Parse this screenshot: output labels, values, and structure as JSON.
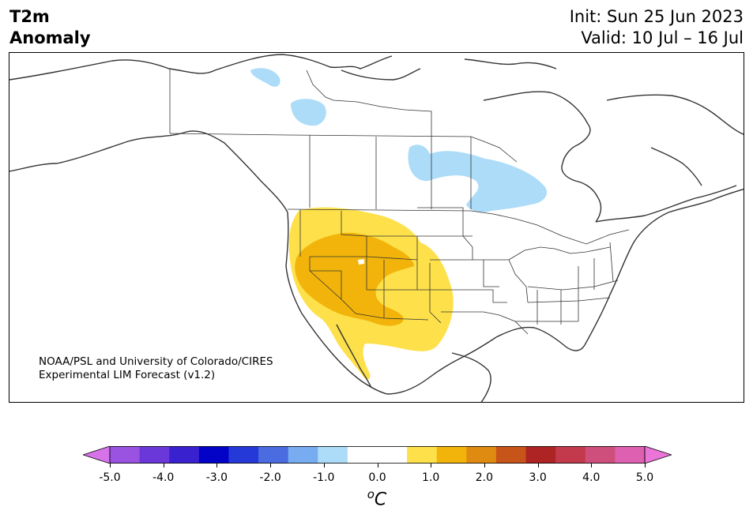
{
  "header": {
    "title_line1": "T2m",
    "title_line2": "Anomaly",
    "init": "Init: Sun 25 Jun 2023",
    "valid": "Valid: 10 Jul – 16 Jul"
  },
  "credit": {
    "line1": "NOAA/PSL and University of Colorado/CIRES",
    "line2": "Experimental LIM Forecast (v1.2)"
  },
  "legend": {
    "unit_base": "C",
    "unit_sup": "o",
    "ticks": [
      "-5.0",
      "-4.0",
      "-3.0",
      "-2.0",
      "-1.0",
      "0.0",
      "1.0",
      "2.0",
      "3.0",
      "4.0",
      "5.0"
    ],
    "colors": [
      "#d673e8",
      "#9a52e0",
      "#6a38d8",
      "#3a21d0",
      "#0303c8",
      "#2538d8",
      "#4a6ce0",
      "#78acf0",
      "#acdcf8",
      "#ffffff",
      "#ffffff",
      "#fde04a",
      "#f2b40a",
      "#df8a10",
      "#c75418",
      "#ae2424",
      "#c33a4c",
      "#cf4f7c",
      "#de60b0",
      "#ea74d8"
    ]
  },
  "map": {
    "region": "North America",
    "anomaly_areas": [
      {
        "label": "cool",
        "range": "-1.0 to -0.5",
        "color": "#acdcf8"
      },
      {
        "label": "warm",
        "range": "0.5 to 1.0",
        "color": "#fde04a"
      },
      {
        "label": "warm",
        "range": "1.0 to 1.5",
        "color": "#f2b40a"
      }
    ],
    "coast_color": "#333333",
    "border_color": "#333333"
  }
}
